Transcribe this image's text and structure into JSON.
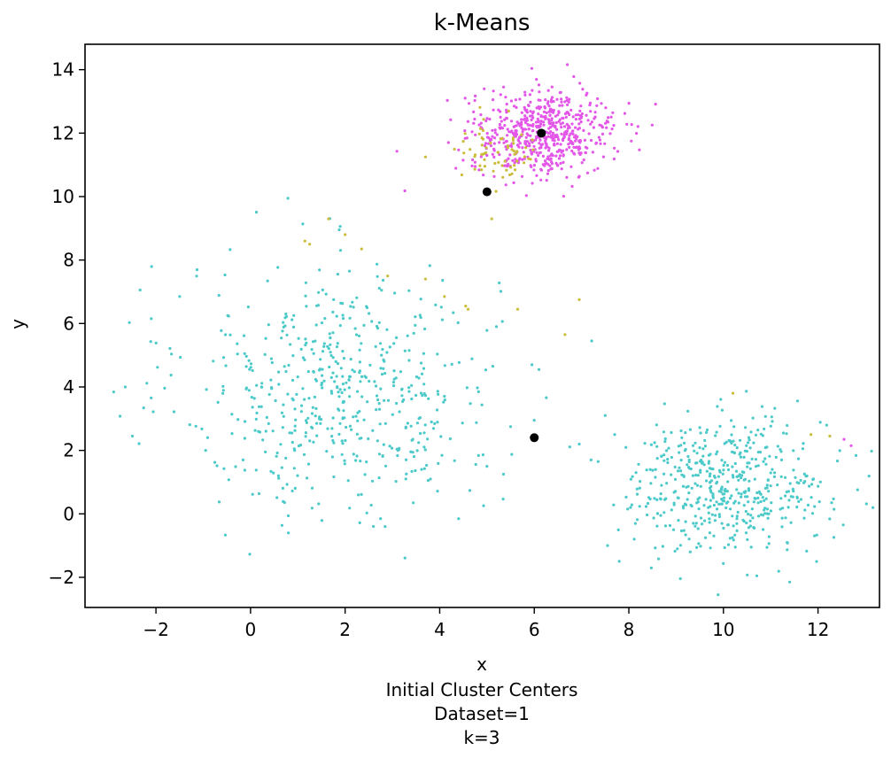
{
  "chart_data": {
    "type": "scatter",
    "title": "k-Means",
    "xlabel": "x",
    "ylabel": "y",
    "caption": [
      "Initial Cluster Centers",
      "Dataset=1",
      "k=3"
    ],
    "xlim": [
      -3.5,
      13.3
    ],
    "ylim": [
      -2.95,
      14.8
    ],
    "x_ticks": [
      -2,
      0,
      2,
      4,
      6,
      8,
      10,
      12
    ],
    "x_tick_labels": [
      "−2",
      "0",
      "2",
      "4",
      "6",
      "8",
      "10",
      "12"
    ],
    "y_ticks": [
      -2,
      0,
      2,
      4,
      6,
      8,
      10,
      12,
      14
    ],
    "y_tick_labels": [
      "−2",
      "0",
      "2",
      "4",
      "6",
      "8",
      "10",
      "12",
      "14"
    ],
    "grid": false,
    "legend": "none",
    "colors": {
      "cyan": "#4cc9c9",
      "magenta": "#e356e8",
      "olive": "#cbbd3c",
      "center": "#000000"
    },
    "clusters": [
      {
        "cx": 1.9,
        "cy": 3.9,
        "sx": 1.65,
        "sy": 2.0,
        "n": 560,
        "color": "cyan"
      },
      {
        "cx": 10.1,
        "cy": 0.9,
        "sx": 1.05,
        "sy": 1.05,
        "n": 520,
        "color": "cyan"
      },
      {
        "cx": 6.2,
        "cy": 12.0,
        "sx": 0.75,
        "sy": 0.65,
        "n": 600,
        "color": "magenta"
      },
      {
        "cx": 5.15,
        "cy": 11.4,
        "sx": 0.5,
        "sy": 0.55,
        "n": 65,
        "color": "olive"
      }
    ],
    "extra_points": [
      {
        "x": 1.15,
        "y": 8.6,
        "color": "olive"
      },
      {
        "x": 1.25,
        "y": 8.5,
        "color": "olive"
      },
      {
        "x": 1.65,
        "y": 9.3,
        "color": "olive"
      },
      {
        "x": 2.0,
        "y": 8.8,
        "color": "olive"
      },
      {
        "x": 2.35,
        "y": 8.35,
        "color": "olive"
      },
      {
        "x": 2.9,
        "y": 7.5,
        "color": "olive"
      },
      {
        "x": 3.7,
        "y": 7.4,
        "color": "olive"
      },
      {
        "x": 4.1,
        "y": 6.85,
        "color": "olive"
      },
      {
        "x": 4.55,
        "y": 6.55,
        "color": "olive"
      },
      {
        "x": 5.65,
        "y": 6.45,
        "color": "olive"
      },
      {
        "x": 6.65,
        "y": 5.65,
        "color": "olive"
      },
      {
        "x": 6.95,
        "y": 6.75,
        "color": "olive"
      },
      {
        "x": 10.2,
        "y": 3.8,
        "color": "olive"
      },
      {
        "x": 11.85,
        "y": 2.5,
        "color": "olive"
      },
      {
        "x": 12.25,
        "y": 2.45,
        "color": "olive"
      },
      {
        "x": 12.7,
        "y": 2.15,
        "color": "magenta"
      },
      {
        "x": 12.55,
        "y": 2.35,
        "color": "magenta"
      },
      {
        "x": 5.1,
        "y": 9.3,
        "color": "olive"
      },
      {
        "x": 3.7,
        "y": 11.25,
        "color": "olive"
      },
      {
        "x": 4.6,
        "y": 6.45,
        "color": "olive"
      },
      {
        "x": 5.2,
        "y": 5.9,
        "color": "cyan"
      },
      {
        "x": 5.95,
        "y": 4.7,
        "color": "cyan"
      },
      {
        "x": 6.0,
        "y": 2.95,
        "color": "cyan"
      },
      {
        "x": 5.5,
        "y": 2.75,
        "color": "cyan"
      },
      {
        "x": 6.95,
        "y": 2.2,
        "color": "cyan"
      },
      {
        "x": 7.5,
        "y": 3.1,
        "color": "cyan"
      },
      {
        "x": 7.7,
        "y": 2.5,
        "color": "cyan"
      },
      {
        "x": 7.2,
        "y": 1.7,
        "color": "cyan"
      },
      {
        "x": 7.35,
        "y": 1.65,
        "color": "cyan"
      },
      {
        "x": 7.55,
        "y": -1.0,
        "color": "cyan"
      },
      {
        "x": 11.4,
        "y": -2.15,
        "color": "cyan"
      },
      {
        "x": 4.4,
        "y": -0.15,
        "color": "cyan"
      },
      {
        "x": 5.0,
        "y": 1.5,
        "color": "cyan"
      },
      {
        "x": 5.35,
        "y": 1.25,
        "color": "cyan"
      },
      {
        "x": -2.65,
        "y": 4.0,
        "color": "cyan"
      },
      {
        "x": -2.1,
        "y": 6.15,
        "color": "cyan"
      },
      {
        "x": -1.5,
        "y": 6.85,
        "color": "cyan"
      },
      {
        "x": -2.5,
        "y": 2.45,
        "color": "cyan"
      },
      {
        "x": 0.8,
        "y": -0.6,
        "color": "cyan"
      },
      {
        "x": 2.75,
        "y": -0.15,
        "color": "cyan"
      }
    ],
    "centers": [
      {
        "x": 6.15,
        "y": 12.0
      },
      {
        "x": 5.0,
        "y": 10.15
      },
      {
        "x": 6.0,
        "y": 2.4
      }
    ]
  }
}
